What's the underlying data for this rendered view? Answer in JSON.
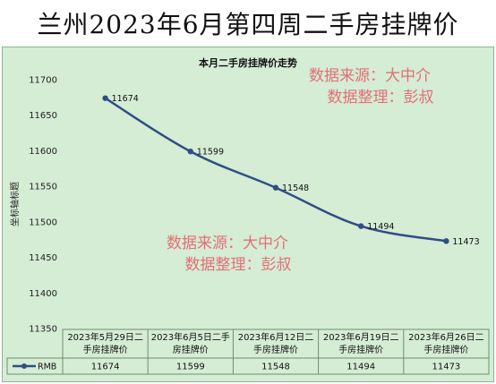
{
  "header": {
    "title": "兰州2023年6月第四周二手房挂牌价"
  },
  "chart_data": {
    "type": "line",
    "title": "本月二手房挂牌价走势",
    "ylabel": "坐标轴标题",
    "xlabel": "",
    "ylim": [
      11350,
      11700
    ],
    "y_ticks": [
      11350,
      11400,
      11450,
      11500,
      11550,
      11600,
      11650,
      11700
    ],
    "categories": [
      "2023年5月29日二手房挂牌价",
      "2023年6月5日二手房挂牌价",
      "2023年6月12日二手房挂牌价",
      "2023年6月19日二手房挂牌价",
      "2023年6月26日二手房挂牌价"
    ],
    "category_lines": [
      [
        "2023年5月29日二",
        "手房挂牌价"
      ],
      [
        "2023年6月5日二手",
        "房挂牌价"
      ],
      [
        "2023年6月12日二",
        "手房挂牌价"
      ],
      [
        "2023年6月19日二",
        "手房挂牌价"
      ],
      [
        "2023年6月26日二",
        "手房挂牌价"
      ]
    ],
    "series": [
      {
        "name": "RMB",
        "values": [
          11674,
          11599,
          11548,
          11494,
          11473
        ],
        "color": "#2e4f85"
      }
    ],
    "data_labels": true,
    "grid": false,
    "legend": "data-table",
    "watermarks": [
      {
        "lines": [
          "数据来源：大中介",
          "数据整理：彭叔"
        ],
        "color": "#e36f76"
      },
      {
        "lines": [
          "数据来源：大中介",
          "数据整理：彭叔"
        ],
        "color": "#e36f76"
      }
    ]
  }
}
